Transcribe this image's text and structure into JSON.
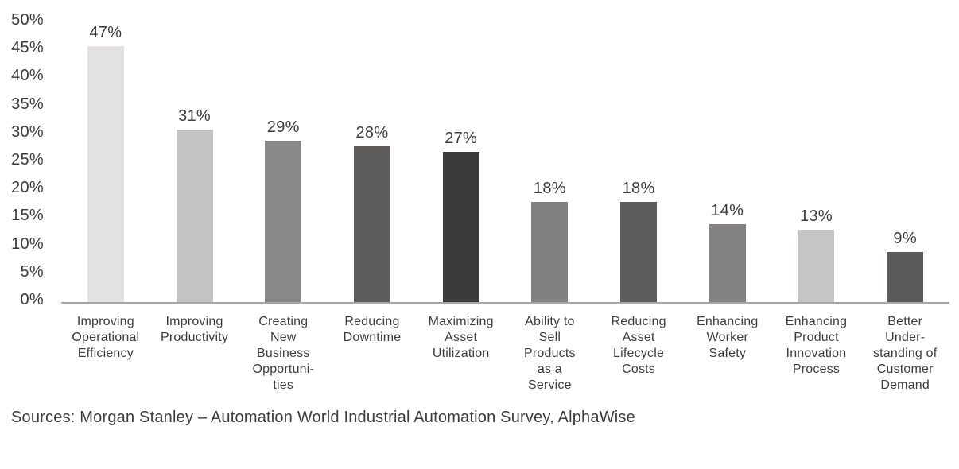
{
  "chart_data": {
    "type": "bar",
    "categories": [
      "Improving\nOperational\nEfficiency",
      "Improving\nProductivity",
      "Creating\nNew\nBusiness\nOpportuni-\nties",
      "Reducing\nDowntime",
      "Maximizing\nAsset\nUtilization",
      "Ability to\nSell\nProducts\nas a\nService",
      "Reducing\nAsset\nLifecycle\nCosts",
      "Enhancing\nWorker\nSafety",
      "Enhancing\nProduct\nInnovation\nProcess",
      "Better\nUnder-\nstanding of\nCustomer\nDemand"
    ],
    "values": [
      47,
      31,
      29,
      28,
      27,
      18,
      18,
      14,
      13,
      9
    ],
    "value_labels": [
      "47%",
      "31%",
      "29%",
      "28%",
      "27%",
      "18%",
      "18%",
      "14%",
      "13%",
      "9%"
    ],
    "bar_colors": [
      "#e3e2e1",
      "#c4c3c2",
      "#8a8988",
      "#5e5d5c",
      "#3b3a39",
      "#828180",
      "#5e5d5c",
      "#838281",
      "#c6c5c4",
      "#5b5a59"
    ],
    "title": "",
    "xlabel": "",
    "ylabel": "",
    "ylim": [
      0,
      50
    ],
    "yticks": [
      0,
      5,
      10,
      15,
      20,
      25,
      30,
      35,
      40,
      45,
      50
    ],
    "ytick_labels": [
      "0%",
      "5%",
      "10%",
      "15%",
      "20%",
      "25%",
      "30%",
      "35%",
      "40%",
      "45%",
      "50%"
    ],
    "grid": false,
    "legend_position": "none"
  },
  "colors": {
    "axis_line": "#a6a6a6",
    "text": "#3c3c3c"
  },
  "source_note": "Sources: Morgan Stanley – Automation World Industrial Automation Survey, AlphaWise"
}
